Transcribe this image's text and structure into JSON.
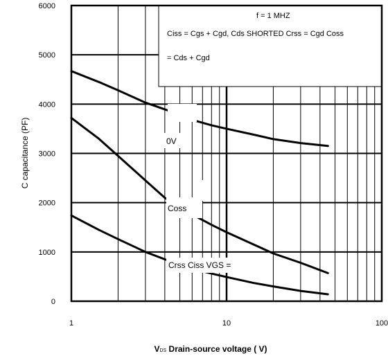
{
  "chart_data": {
    "type": "line",
    "x_scale": "log",
    "xlim": [
      1,
      100
    ],
    "ylim": [
      0,
      6000
    ],
    "x_ticks": [
      "1",
      "10",
      "100"
    ],
    "y_ticks": [
      "0",
      "1000",
      "2000",
      "3000",
      "4000",
      "5000",
      "6000"
    ],
    "xlabel_prefix": "V",
    "xlabel_sub": "DS",
    "xlabel_main": " Drain-source voltage ( V)",
    "ylabel": "C capacitance (PF)",
    "grid": true,
    "legend_box": {
      "line1": "f = 1 MHZ",
      "line2": "Ciss = Cgs + Cgd, Cds SHORTED Crss = Cgd Coss",
      "line3": "= Cds + Cgd"
    },
    "annotations": {
      "vgs0": "0V",
      "coss": "Coss",
      "bottom": "Crss Ciss VGS ="
    },
    "series": [
      {
        "x": [
          1,
          1.5,
          2,
          3,
          4.2,
          6,
          8,
          10,
          15,
          20,
          30,
          45
        ],
        "y": [
          4670,
          4450,
          4280,
          4030,
          3870,
          3680,
          3570,
          3500,
          3380,
          3290,
          3210,
          3150
        ]
      },
      {
        "x": [
          1,
          1.5,
          2,
          3,
          4,
          5,
          6,
          8,
          10,
          15,
          20,
          30,
          45
        ],
        "y": [
          3720,
          3300,
          2950,
          2450,
          2100,
          1900,
          1760,
          1550,
          1400,
          1150,
          970,
          780,
          570
        ]
      },
      {
        "x": [
          1,
          1.5,
          2,
          3,
          4,
          6,
          8,
          10,
          15,
          20,
          30,
          45
        ],
        "y": [
          1740,
          1450,
          1260,
          1000,
          850,
          660,
          560,
          490,
          370,
          300,
          210,
          140
        ]
      }
    ]
  }
}
